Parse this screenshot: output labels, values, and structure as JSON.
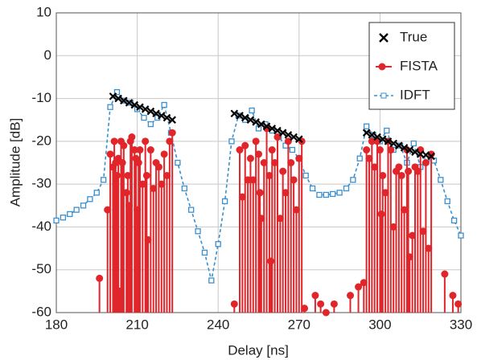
{
  "chart_data": {
    "type": "line",
    "xlabel": "Delay [ns]",
    "ylabel": "Amplitude [dB]",
    "xlim": [
      180,
      330
    ],
    "xticks": [
      180,
      210,
      240,
      270,
      300,
      330
    ],
    "ylim": [
      -60,
      10
    ],
    "yticks": [
      10,
      0,
      -10,
      -20,
      -30,
      -40,
      -50,
      -60
    ],
    "grid": true,
    "legend": "upper right",
    "series": [
      {
        "name": "True",
        "color": "#000000",
        "style": "markers",
        "x": [
          201,
          203,
          205,
          207,
          209,
          211,
          213,
          215,
          217,
          219,
          221,
          223,
          246,
          248,
          250,
          252,
          254,
          256,
          258,
          260,
          262,
          264,
          266,
          268,
          270,
          295,
          297,
          299,
          301,
          303,
          305,
          307,
          309,
          311,
          313,
          315,
          317,
          319
        ],
        "values": [
          -9.5,
          -10,
          -10.5,
          -11,
          -11.5,
          -12,
          -12.5,
          -13,
          -13.5,
          -14,
          -14.5,
          -15,
          -13.5,
          -14,
          -14.5,
          -15,
          -15.5,
          -16,
          -16.5,
          -17,
          -17.5,
          -18,
          -18.5,
          -19,
          -19.5,
          -18,
          -18.5,
          -19,
          -19.5,
          -20,
          -20.5,
          -21,
          -21.5,
          -22,
          -22.5,
          -23,
          -23.2,
          -23.5
        ]
      },
      {
        "name": "FISTA",
        "color": "#e0252b",
        "style": "stem",
        "x": [
          196,
          199,
          200,
          201,
          201.5,
          202,
          202.5,
          203,
          203.5,
          204,
          204.5,
          205,
          206,
          206.5,
          207,
          207.5,
          208,
          209,
          209.5,
          210,
          210.5,
          211,
          212,
          213,
          213.5,
          214,
          215,
          216,
          217,
          218,
          219,
          220,
          221,
          222,
          223,
          246,
          248,
          249,
          250,
          251,
          252,
          253,
          254,
          255,
          255.5,
          256,
          257,
          258,
          259,
          259.5,
          260,
          261,
          262,
          263,
          264,
          265,
          266,
          267,
          268,
          269,
          270,
          271,
          272,
          276,
          278,
          280,
          283,
          289,
          292,
          294,
          295,
          296,
          297,
          298,
          299,
          300,
          300.5,
          301,
          302,
          303,
          304,
          305,
          306,
          307,
          308,
          309,
          310,
          310.5,
          311,
          312,
          313,
          314,
          315,
          316,
          317,
          318,
          319,
          324,
          327,
          329
        ],
        "values": [
          -52,
          -36,
          -23,
          -26,
          -20,
          -25,
          -28,
          -24,
          -55,
          -20,
          -25,
          -21,
          -32,
          -28,
          -35,
          -20,
          -19,
          -22,
          -24,
          -36,
          -25,
          -22,
          -30,
          -20,
          -28,
          -43,
          -22,
          -31,
          -25,
          -26,
          -30,
          -23,
          -28,
          -20,
          -18,
          -58,
          -22,
          -33,
          -21,
          -29,
          -24,
          -29,
          -20,
          -23,
          -32,
          -38,
          -25,
          -17,
          -28,
          -48,
          -22,
          -25,
          -19,
          -38,
          -27,
          -32,
          -20,
          -25,
          -29,
          -36,
          -24,
          -20,
          -59,
          -56,
          -58,
          -60,
          -58,
          -56,
          -54,
          -53,
          -22,
          -24,
          -20,
          -26,
          -20,
          -22,
          -37,
          -28,
          -32,
          -20,
          -22,
          -40,
          -27,
          -26,
          -28,
          -36,
          -22,
          -27,
          -47,
          -42,
          -26,
          -27,
          -22,
          -41,
          -25,
          -45,
          -23,
          -51,
          -56,
          -58
        ]
      },
      {
        "name": "IDFT",
        "color": "#3a8fd0",
        "style": "dashed",
        "x": [
          180,
          182.5,
          185,
          187.5,
          190,
          192.5,
          195,
          197.5,
          200,
          202.5,
          205,
          207.5,
          210,
          212.5,
          215,
          217.5,
          220,
          222.5,
          225,
          227.5,
          230,
          232.5,
          235,
          237.5,
          240,
          242.5,
          245,
          247.5,
          250,
          252.5,
          255,
          257.5,
          260,
          262.5,
          265,
          267.5,
          270,
          272.5,
          275,
          277.5,
          280,
          282.5,
          285,
          287.5,
          290,
          292.5,
          295,
          297.5,
          300,
          302.5,
          305,
          307.5,
          310,
          312.5,
          315,
          317.5,
          320,
          322.5,
          325,
          327.5,
          330
        ],
        "values": [
          -38.5,
          -37.8,
          -37,
          -36,
          -35,
          -33.5,
          -32,
          -29,
          -12,
          -8.5,
          -10.5,
          -11,
          -12.5,
          -14.5,
          -16,
          -14.5,
          -11.5,
          -18,
          -25,
          -31,
          -36,
          -41,
          -46,
          -52.5,
          -44,
          -34,
          -20,
          -14,
          -15,
          -12.8,
          -17,
          -16,
          -17.5,
          -19,
          -21,
          -22,
          -24,
          -28,
          -31,
          -32.5,
          -32.5,
          -32.3,
          -32,
          -31,
          -29,
          -24,
          -16.5,
          -18.5,
          -20,
          -17.5,
          -22,
          -21,
          -25,
          -20.5,
          -26,
          -24,
          -24.5,
          -29,
          -34,
          -38.5,
          -42
        ]
      }
    ]
  }
}
